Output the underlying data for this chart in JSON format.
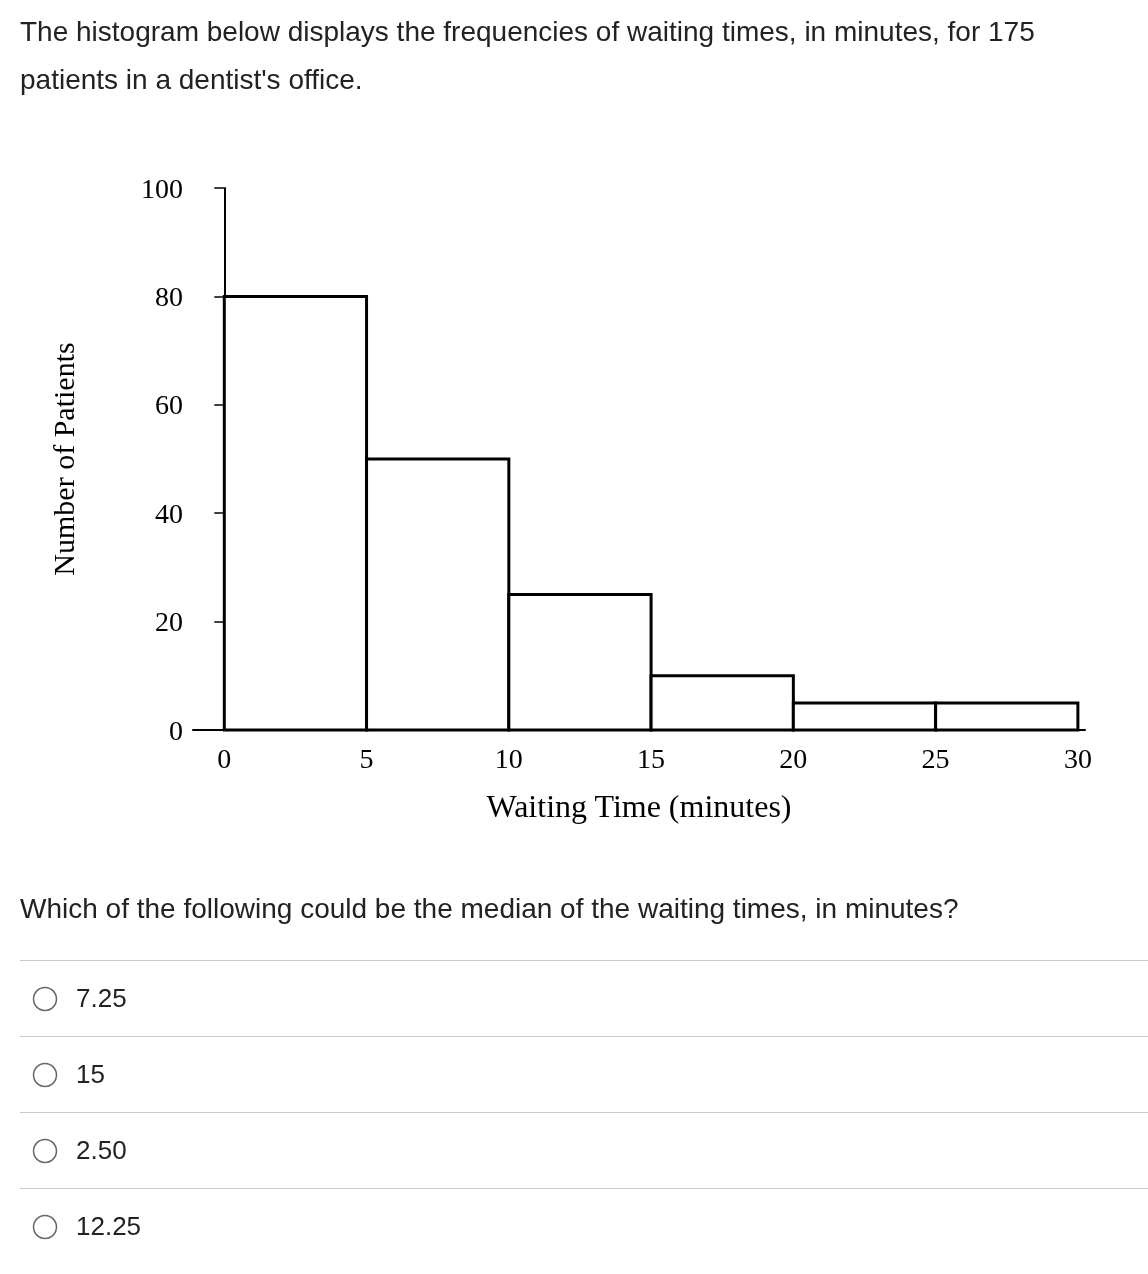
{
  "chart_data": {
    "type": "histogram",
    "title": "The histogram below displays the frequencies of waiting times, in minutes, for 175 patients in a dentist's office.",
    "xlabel": "Waiting Time (minutes)",
    "ylabel": "Number of Patients",
    "bins": [
      0,
      5,
      10,
      15,
      20,
      25,
      30
    ],
    "values": [
      80,
      50,
      25,
      10,
      5,
      5
    ],
    "color": "#ffffff",
    "xlim": [
      -1.1,
      30.25
    ],
    "xticks": [
      0,
      5,
      10,
      15,
      20,
      25,
      30
    ],
    "ylim": [
      0,
      100
    ],
    "yticks": [
      0,
      20,
      40,
      60,
      80,
      100
    ],
    "grid": false,
    "annotations": [
      "Which of the following could be the median of the waiting times, in minutes?",
      "7.25",
      "15",
      "2.50",
      "12.25"
    ]
  }
}
